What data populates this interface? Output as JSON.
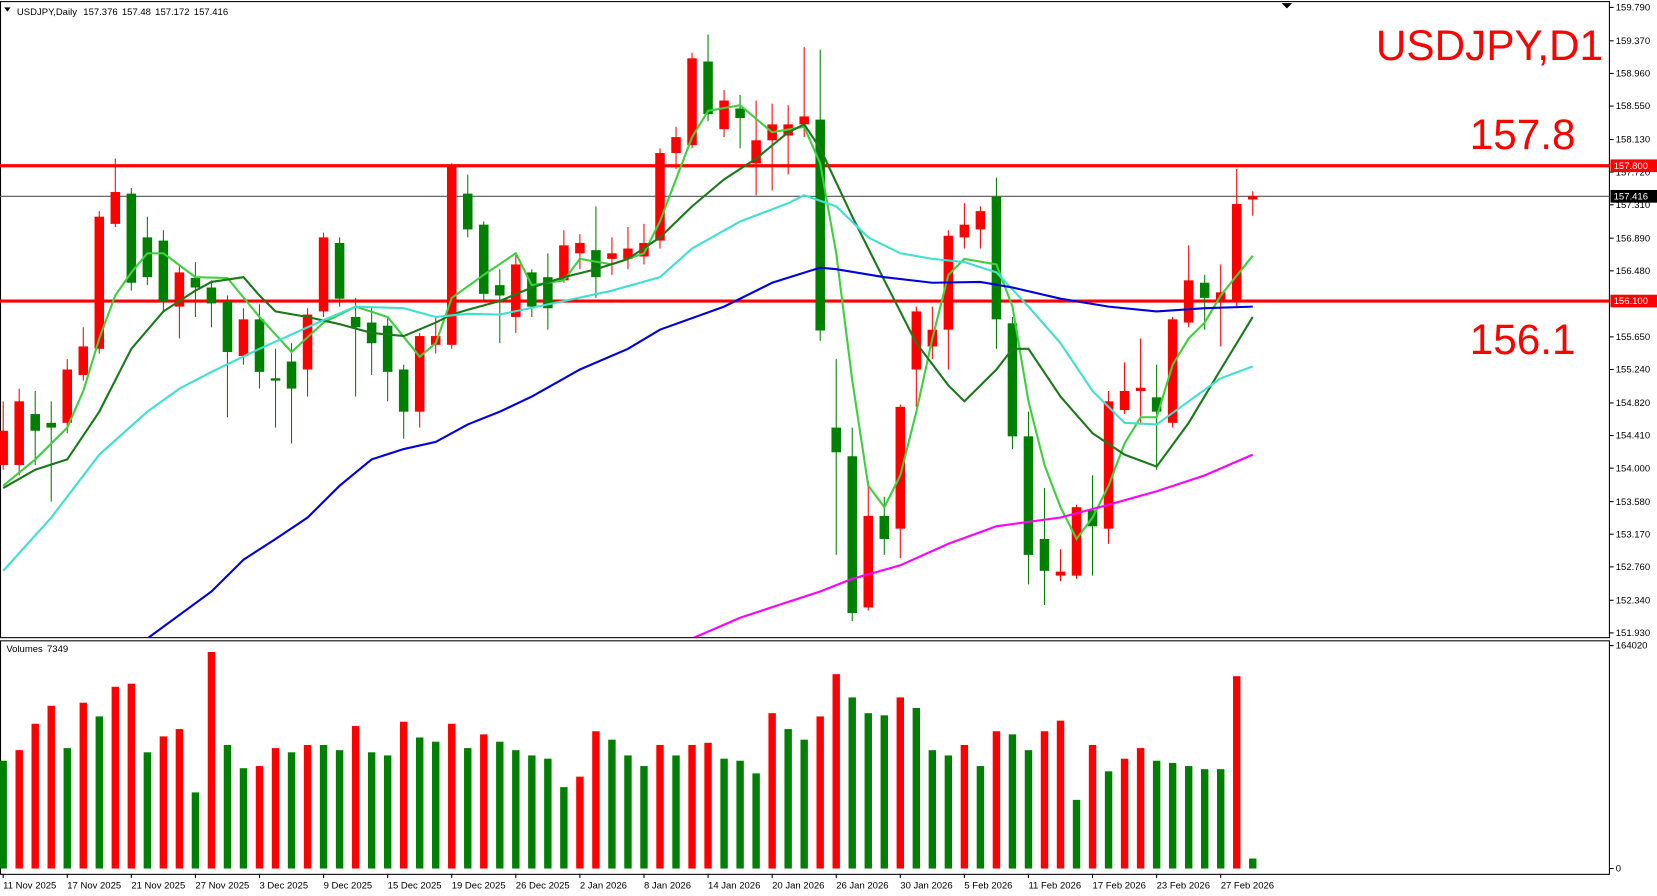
{
  "chart_data": {
    "type": "candlestick",
    "symbol": "USDJPY,Daily",
    "label": "USDJPY,D1",
    "categories": [
      "11 Nov 2025",
      null,
      null,
      null,
      "17 Nov 2025",
      null,
      null,
      null,
      "21 Nov 2025",
      null,
      null,
      null,
      "27 Nov 2025",
      null,
      null,
      null,
      "3 Dec 2025",
      null,
      null,
      null,
      "9 Dec 2025",
      null,
      null,
      null,
      "15 Dec 2025",
      null,
      null,
      null,
      "19 Dec 2025",
      null,
      null,
      null,
      "26 Dec 2025",
      null,
      null,
      null,
      "2 Jan 2026",
      null,
      null,
      null,
      "8 Jan 2026",
      null,
      null,
      null,
      "14 Jan 2026",
      null,
      null,
      null,
      "20 Jan 2026",
      null,
      null,
      null,
      "26 Jan 2026",
      null,
      null,
      null,
      "30 Jan 2026",
      null,
      null,
      null,
      "5 Feb 2026",
      null,
      null,
      null,
      "11 Feb 2026",
      null,
      null,
      null,
      "17 Feb 2026",
      null,
      null,
      null,
      "23 Feb 2026",
      null,
      null,
      null,
      "27 Feb 2026",
      null,
      null
    ],
    "open": [
      154.04,
      154.04,
      154.68,
      154.57,
      154.57,
      155.17,
      155.5,
      157.07,
      157.45,
      156.9,
      156.86,
      156.03,
      156.39,
      156.27,
      156.1,
      155.41,
      155.87,
      155.13,
      155.34,
      155.24,
      155.97,
      156.83,
      155.9,
      155.83,
      155.79,
      155.24,
      154.71,
      155.55,
      155.55,
      157.45,
      157.06,
      156.3,
      155.9,
      156.46,
      156.4,
      156.36,
      156.7,
      156.74,
      156.63,
      156.63,
      156.66,
      156.86,
      157.96,
      158.06,
      159.11,
      158.26,
      158.52,
      157.83,
      158.12,
      158.18,
      158.32,
      158.38,
      154.51,
      154.15,
      152.25,
      153.4,
      153.24,
      155.24,
      155.53,
      155.74,
      156.9,
      157.0,
      157.41,
      155.82,
      154.4,
      153.11,
      152.65,
      152.65,
      153.47,
      153.24,
      154.73,
      154.97,
      154.89,
      154.57,
      155.83,
      156.33,
      156.1,
      156.1,
      157.376
    ],
    "high": [
      154.84,
      155.0,
      154.97,
      154.84,
      155.37,
      155.77,
      157.23,
      157.89,
      157.52,
      157.16,
      156.99,
      156.56,
      156.59,
      156.36,
      156.17,
      156.01,
      156.06,
      155.5,
      155.57,
      156.01,
      156.96,
      156.9,
      156.14,
      156.03,
      155.9,
      155.3,
      155.7,
      155.9,
      157.83,
      157.69,
      157.1,
      156.5,
      156.7,
      156.5,
      156.7,
      156.99,
      156.94,
      157.29,
      156.9,
      157.03,
      157.07,
      158.02,
      158.29,
      159.22,
      159.45,
      158.75,
      158.69,
      158.62,
      158.58,
      158.56,
      159.29,
      159.26,
      155.37,
      154.51,
      153.84,
      153.64,
      154.8,
      156.03,
      156.03,
      156.99,
      157.33,
      157.29,
      157.65,
      155.9,
      154.71,
      153.75,
      152.98,
      153.54,
      153.91,
      154.97,
      155.33,
      155.63,
      155.3,
      155.9,
      156.8,
      156.43,
      156.56,
      157.76,
      157.48
    ],
    "low": [
      153.98,
      153.91,
      154.04,
      153.58,
      154.44,
      155.1,
      155.44,
      157.03,
      156.23,
      156.3,
      155.97,
      155.63,
      155.9,
      155.77,
      154.64,
      155.3,
      155.0,
      154.51,
      154.31,
      154.9,
      155.9,
      156.03,
      154.9,
      155.17,
      154.84,
      154.37,
      154.51,
      155.44,
      155.5,
      156.9,
      156.1,
      155.57,
      155.7,
      155.9,
      155.74,
      156.33,
      156.5,
      156.14,
      156.43,
      156.5,
      156.56,
      156.76,
      157.76,
      158.02,
      158.36,
      158.16,
      158.02,
      157.43,
      157.49,
      157.69,
      158.16,
      155.6,
      152.91,
      152.08,
      152.21,
      152.91,
      152.87,
      154.77,
      155.37,
      155.24,
      156.76,
      156.76,
      155.5,
      154.24,
      152.54,
      152.28,
      152.58,
      152.61,
      152.65,
      153.05,
      154.68,
      154.57,
      153.98,
      154.51,
      155.77,
      155.74,
      155.53,
      156.03,
      157.172
    ],
    "close": [
      154.47,
      154.84,
      154.47,
      154.51,
      155.24,
      155.53,
      157.16,
      157.47,
      156.33,
      156.4,
      156.1,
      156.46,
      156.27,
      156.07,
      155.46,
      155.87,
      155.21,
      155.1,
      155.0,
      155.93,
      156.9,
      156.13,
      155.77,
      155.57,
      155.21,
      154.71,
      155.66,
      155.66,
      157.79,
      157.0,
      156.19,
      156.17,
      156.56,
      156.03,
      156.01,
      156.8,
      156.83,
      156.4,
      156.7,
      156.76,
      156.83,
      157.96,
      158.16,
      159.15,
      158.45,
      158.62,
      158.4,
      158.12,
      158.32,
      158.32,
      158.42,
      155.73,
      154.2,
      152.18,
      153.4,
      153.11,
      154.77,
      155.97,
      155.74,
      156.92,
      157.06,
      157.23,
      155.87,
      154.4,
      152.91,
      152.71,
      152.7,
      153.51,
      153.27,
      154.84,
      154.97,
      155.01,
      154.71,
      155.87,
      156.36,
      156.14,
      156.21,
      157.32,
      157.416
    ],
    "up_color": "#ff0000",
    "down_color": "#008000",
    "ylim": [
      151.93,
      159.79
    ],
    "yticks": [
      {
        "value": 159.79,
        "label": "159.790"
      },
      {
        "value": 159.37,
        "label": "159.370"
      },
      {
        "value": 158.96,
        "label": "158.960"
      },
      {
        "value": 158.55,
        "label": "158.550"
      },
      {
        "value": 158.13,
        "label": "158.130"
      },
      {
        "value": 157.72,
        "label": "157.720"
      },
      {
        "value": 157.31,
        "label": "157.310"
      },
      {
        "value": 156.89,
        "label": "156.890"
      },
      {
        "value": 156.48,
        "label": "156.480"
      },
      {
        "value": 155.65,
        "label": "155.650"
      },
      {
        "value": 155.24,
        "label": "155.240"
      },
      {
        "value": 154.82,
        "label": "154.820"
      },
      {
        "value": 154.41,
        "label": "154.410"
      },
      {
        "value": 154,
        "label": "154.000"
      },
      {
        "value": 153.58,
        "label": "153.580"
      },
      {
        "value": 153.17,
        "label": "153.170"
      },
      {
        "value": 152.76,
        "label": "152.760"
      },
      {
        "value": 152.34,
        "label": "152.340"
      },
      {
        "value": 151.93,
        "label": "151.930"
      }
    ],
    "levels": [
      {
        "value": 157.8,
        "label": "157.800",
        "color": "#ff0000"
      },
      {
        "value": 156.1,
        "label": "156.100",
        "color": "#ff0000"
      }
    ],
    "moving_averages": [
      {
        "color": "#3fcf3f",
        "x": [
          0,
          2,
          4,
          5,
          6,
          7,
          8,
          9,
          10,
          12,
          14,
          16,
          18,
          20,
          22,
          24,
          26,
          27,
          28,
          30,
          32,
          33,
          35,
          36,
          38,
          40,
          41,
          42,
          43,
          44,
          46,
          48,
          50,
          51,
          52,
          53,
          54,
          55,
          56,
          57,
          58,
          59,
          60,
          62,
          63,
          64,
          65,
          66,
          67,
          68,
          69,
          70,
          71,
          72,
          73,
          74,
          75,
          76,
          78
        ],
        "values": [
          153.78,
          154.11,
          154.51,
          154.97,
          155.63,
          156.17,
          156.46,
          156.7,
          156.7,
          156.4,
          156.39,
          155.9,
          155.46,
          155.83,
          156.03,
          155.9,
          155.4,
          155.57,
          156.14,
          156.43,
          156.7,
          156.3,
          156.36,
          156.63,
          156.56,
          156.7,
          157.1,
          157.63,
          158.16,
          158.49,
          158.56,
          158.22,
          158.29,
          157.83,
          156.7,
          155.1,
          153.78,
          153.51,
          153.91,
          154.71,
          155.63,
          156.43,
          156.63,
          156.56,
          156.03,
          154.84,
          154.04,
          153.51,
          153.11,
          153.38,
          153.78,
          154.31,
          154.64,
          154.64,
          155.3,
          155.63,
          155.83,
          156.17,
          156.67
        ]
      },
      {
        "color": "#1a7a1a",
        "x": [
          0,
          2,
          4,
          6,
          8,
          10,
          12,
          13,
          15,
          16,
          17,
          19,
          21,
          23,
          25,
          27,
          28,
          29,
          31,
          33,
          35,
          37,
          39,
          41,
          43,
          45,
          47,
          49,
          50,
          51,
          53,
          55,
          57,
          59,
          60,
          61,
          62,
          63,
          64,
          66,
          68,
          70,
          72,
          74,
          76,
          78
        ],
        "values": [
          153.75,
          153.98,
          154.11,
          154.71,
          155.5,
          155.97,
          156.23,
          156.34,
          156.4,
          156.17,
          155.97,
          155.9,
          155.81,
          155.7,
          155.66,
          155.83,
          155.93,
          155.99,
          156.1,
          156.27,
          156.4,
          156.5,
          156.63,
          156.9,
          157.29,
          157.63,
          157.89,
          158.22,
          158.32,
          158.02,
          157.16,
          156.36,
          155.57,
          155.04,
          154.84,
          155.04,
          155.24,
          155.5,
          155.5,
          154.9,
          154.44,
          154.17,
          154.02,
          154.57,
          155.24,
          155.9
        ]
      },
      {
        "color": "#40e0d0",
        "x": [
          0,
          3,
          6,
          9,
          11,
          13,
          16,
          20,
          22,
          25,
          27,
          29,
          31,
          35,
          38,
          41,
          43,
          46,
          49,
          50,
          52,
          54,
          56,
          58,
          60,
          62,
          64,
          66,
          68,
          70,
          72,
          74,
          76,
          78
        ],
        "values": [
          152.71,
          153.38,
          154.17,
          154.71,
          155.0,
          155.21,
          155.5,
          155.86,
          156.03,
          156.01,
          155.9,
          155.94,
          155.93,
          156.1,
          156.23,
          156.4,
          156.76,
          157.1,
          157.33,
          157.43,
          157.29,
          156.9,
          156.7,
          156.63,
          156.59,
          156.46,
          156.03,
          155.57,
          154.97,
          154.57,
          154.55,
          154.84,
          155.13,
          155.28
        ]
      },
      {
        "color": "#0000dd",
        "x": [
          9,
          13,
          15,
          17,
          19,
          21,
          23,
          25,
          27,
          29,
          31,
          33,
          36,
          39,
          41,
          45,
          48,
          51,
          52,
          55,
          58,
          61,
          63,
          66,
          69,
          72,
          75,
          78
        ],
        "values": [
          151.86,
          152.45,
          152.85,
          153.11,
          153.38,
          153.78,
          154.11,
          154.24,
          154.33,
          154.55,
          154.71,
          154.9,
          155.24,
          155.5,
          155.74,
          156.03,
          156.33,
          156.52,
          156.5,
          156.4,
          156.33,
          156.34,
          156.27,
          156.13,
          156.03,
          155.97,
          156.01,
          156.03
        ]
      },
      {
        "color": "#ff00ff",
        "x": [
          43,
          46,
          49,
          51,
          53,
          56,
          59,
          62,
          66,
          69,
          72,
          75,
          78
        ],
        "values": [
          151.86,
          152.12,
          152.32,
          152.45,
          152.61,
          152.78,
          153.05,
          153.27,
          153.38,
          153.54,
          153.71,
          153.91,
          154.17
        ]
      }
    ],
    "volume": {
      "title": "Volumes",
      "values": [
        79300,
        87100,
        106500,
        119700,
        88600,
        122000,
        111900,
        133700,
        136000,
        85500,
        97200,
        102600,
        56000,
        159300,
        90900,
        73800,
        75400,
        88600,
        85500,
        90900,
        90900,
        87100,
        104900,
        85500,
        83200,
        108000,
        96400,
        93300,
        106500,
        88600,
        98700,
        93300,
        87100,
        83200,
        80800,
        59900,
        67600,
        101000,
        94800,
        83200,
        75400,
        90900,
        83200,
        90900,
        92500,
        80800,
        79300,
        70000,
        114300,
        102600,
        94800,
        111900,
        143000,
        125900,
        114300,
        112700,
        125900,
        118100,
        87100,
        83200,
        90900,
        75400,
        101000,
        98700,
        87100,
        101000,
        108800,
        50500,
        90900,
        71500,
        80800,
        88600,
        79300,
        77700,
        75400,
        73100,
        73100,
        141500,
        7349
      ],
      "ylim": [
        0,
        164020
      ],
      "yticks": [
        164020,
        0
      ]
    }
  }
}
